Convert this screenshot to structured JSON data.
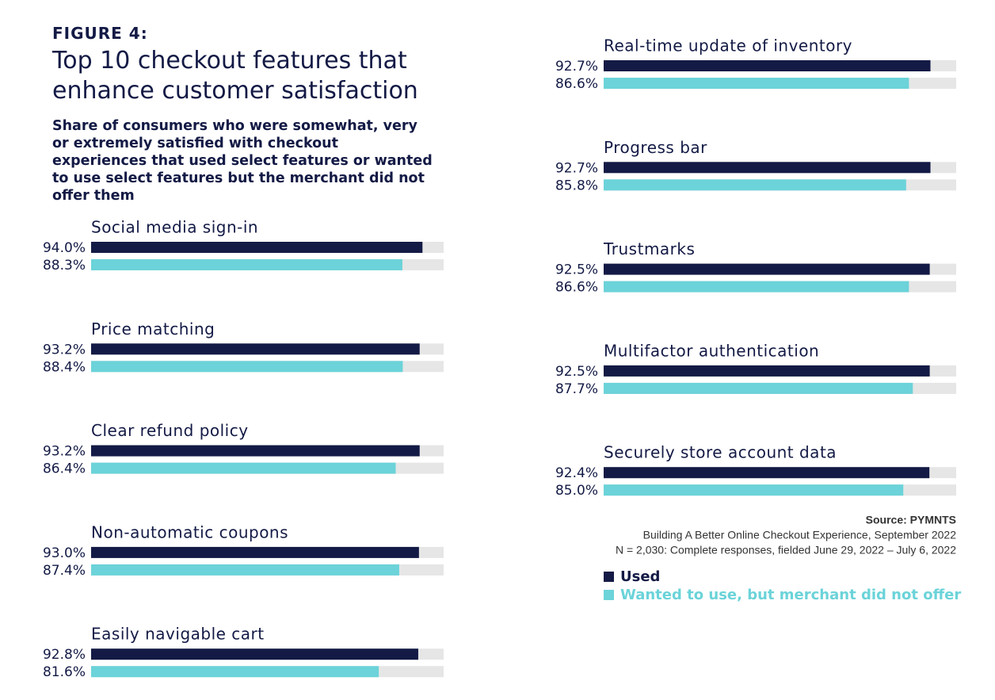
{
  "chart_data": {
    "type": "bar",
    "figure_label": "FIGURE 4:",
    "title": "Top 10 checkout features that enhance customer satisfaction",
    "subtitle": "Share of consumers who were somewhat, very or extremely satisfied with checkout experiences that used select features or wanted to use select features but the merchant did not offer them",
    "categories": [
      "Social media sign-in",
      "Price matching",
      "Clear refund policy",
      "Non-automatic coupons",
      "Easily navigable cart",
      "Real-time update of inventory",
      "Progress bar",
      "Trustmarks",
      "Multifactor authentication",
      "Securely store account data"
    ],
    "series": [
      {
        "name": "Used",
        "color": "#131a45",
        "values": [
          94.0,
          93.2,
          93.2,
          93.0,
          92.8,
          92.7,
          92.7,
          92.5,
          92.5,
          92.4
        ],
        "value_labels": [
          "94.0%",
          "93.2%",
          "93.2%",
          "93.0%",
          "92.8%",
          "92.7%",
          "92.7%",
          "92.5%",
          "92.5%",
          "92.4%"
        ]
      },
      {
        "name": "Wanted to use, but merchant did not offer",
        "color": "#6bd3d9",
        "values": [
          88.3,
          88.4,
          86.4,
          87.4,
          81.6,
          86.6,
          85.8,
          86.6,
          87.7,
          85.0
        ],
        "value_labels": [
          "88.3%",
          "88.4%",
          "86.4%",
          "87.4%",
          "81.6%",
          "86.6%",
          "85.8%",
          "86.6%",
          "87.7%",
          "85.0%"
        ]
      }
    ],
    "xlim": [
      0,
      100
    ],
    "source": [
      "Source: PYMNTS",
      "Building A Better Online Checkout Experience, September 2022",
      "N = 2,030: Complete responses, fielded June 29, 2022 – July 6, 2022"
    ]
  }
}
